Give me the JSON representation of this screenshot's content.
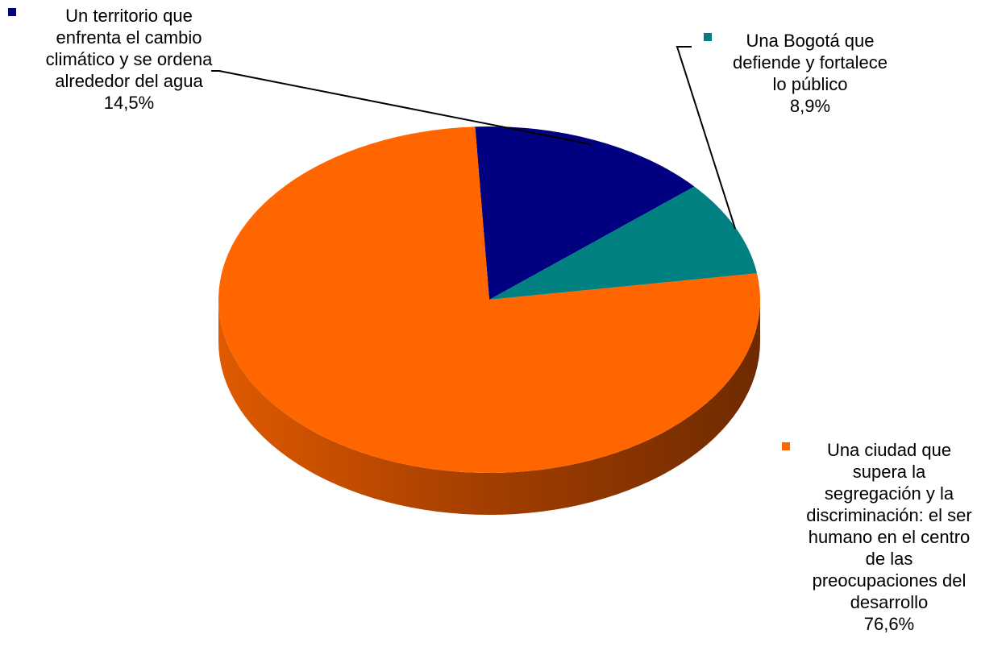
{
  "chart_data": {
    "type": "pie",
    "title": "",
    "legend": "none",
    "style": "3d",
    "slices": [
      {
        "label": "Un territorio que\nenfrenta el cambio\nclimático y se ordena\nalrededor del agua",
        "value_label": "14,5%",
        "value": 14.5,
        "color": "#000080"
      },
      {
        "label": "Una Bogotá que\ndefiende y fortalece\nlo público",
        "value_label": "8,9%",
        "value": 8.9,
        "color": "#008080"
      },
      {
        "label": "Una ciudad que\nsupera la\nsegregación y la\ndiscriminación: el ser\nhumano en el centro\nde las\npreocupaciones del\ndesarrollo",
        "value_label": "76,6%",
        "value": 76.6,
        "color": "#FF6600"
      }
    ]
  }
}
